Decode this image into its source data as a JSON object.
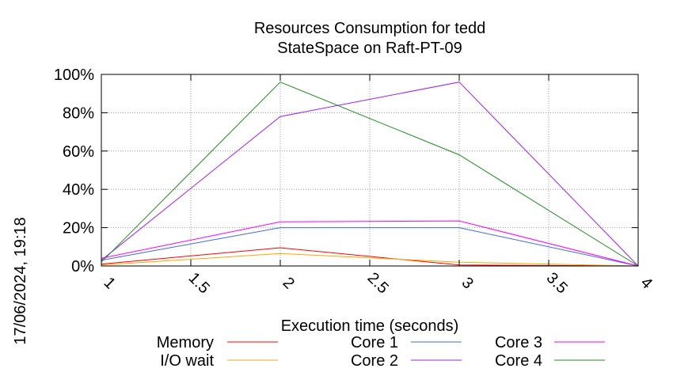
{
  "chart_data": {
    "type": "line",
    "title": "Resources Consumption for tedd",
    "subtitle": "StateSpace on Raft-PT-09",
    "xlabel": "Execution time (seconds)",
    "ylabel": "",
    "xlim": [
      1,
      4
    ],
    "ylim": [
      0,
      100
    ],
    "x_ticks": [
      "1",
      "1.5",
      "2",
      "2.5",
      "3",
      "3.5",
      "4"
    ],
    "y_ticks": [
      "0%",
      "20%",
      "40%",
      "60%",
      "80%",
      "100%"
    ],
    "grid": true,
    "legend_position": "bottom",
    "side_label": "17/06/2024, 19:18",
    "series": [
      {
        "name": "Memory",
        "color": "#ff0000",
        "x": [
          1,
          2,
          3,
          4
        ],
        "y": [
          1,
          9.5,
          0.5,
          0
        ]
      },
      {
        "name": "I/O wait",
        "color": "#ffa500",
        "x": [
          1,
          2,
          3,
          4
        ],
        "y": [
          0.5,
          6.5,
          2,
          0
        ]
      },
      {
        "name": "Core 1",
        "color": "#4169e1",
        "x": [
          1,
          2,
          3,
          4
        ],
        "y": [
          3,
          20,
          20,
          0
        ]
      },
      {
        "name": "Core 2",
        "color": "#a020f0",
        "x": [
          1,
          2,
          3,
          4
        ],
        "y": [
          3,
          78,
          96,
          0
        ]
      },
      {
        "name": "Core 3",
        "color": "#ff00ff",
        "x": [
          1,
          2,
          3,
          4
        ],
        "y": [
          4,
          23,
          23.5,
          0
        ]
      },
      {
        "name": "Core 4",
        "color": "#228b22",
        "x": [
          1,
          2,
          3,
          4
        ],
        "y": [
          2,
          96,
          58,
          0
        ]
      }
    ]
  }
}
